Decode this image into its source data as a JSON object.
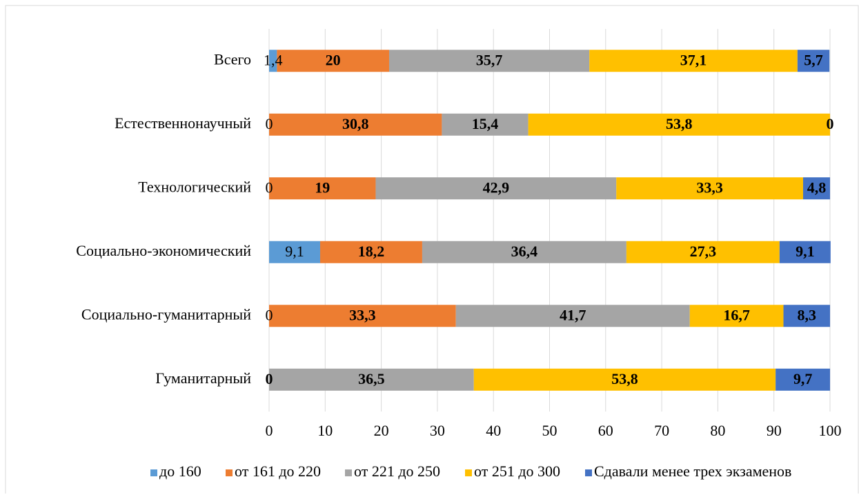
{
  "chart_data": {
    "type": "stacked_barh",
    "categories": [
      "Всего",
      "Естественнонаучный",
      "Технологический",
      "Социально-экономический",
      "Социально-гуманитарный",
      "Гуманитарный"
    ],
    "series": [
      {
        "name": "до 160",
        "color": "#5b9bd5",
        "values": [
          1.4,
          0,
          0,
          9.1,
          0,
          null
        ],
        "value_labels": [
          "1,4",
          "0",
          "0",
          "9,1",
          "0",
          null
        ]
      },
      {
        "name": "от 161 до 220",
        "color": "#ed7d31",
        "values": [
          20,
          30.8,
          19,
          18.2,
          33.3,
          0
        ],
        "value_labels": [
          "20",
          "30,8",
          "19",
          "18,2",
          "33,3",
          "0"
        ]
      },
      {
        "name": "от 221 до 250",
        "color": "#a5a5a5",
        "values": [
          35.7,
          15.4,
          42.9,
          36.4,
          41.7,
          36.5
        ],
        "value_labels": [
          "35,7",
          "15,4",
          "42,9",
          "36,4",
          "41,7",
          "36,5"
        ]
      },
      {
        "name": "от 251 до 300",
        "color": "#ffc000",
        "values": [
          37.1,
          53.8,
          33.3,
          27.3,
          16.7,
          53.8
        ],
        "value_labels": [
          "37,1",
          "53,8",
          "33,3",
          "27,3",
          "16,7",
          "53,8"
        ]
      },
      {
        "name": "Сдавали менее трех экзаменов",
        "color": "#4472c4",
        "values": [
          5.7,
          0,
          4.8,
          9.1,
          8.3,
          9.7
        ],
        "value_labels": [
          "5,7",
          "0",
          "4,8",
          "9,1",
          "8,3",
          "9,7"
        ]
      }
    ],
    "xlim": [
      0,
      100
    ],
    "xticks": [
      0,
      10,
      20,
      30,
      40,
      50,
      60,
      70,
      80,
      90,
      100
    ],
    "grid": true,
    "legend": "bottom"
  }
}
